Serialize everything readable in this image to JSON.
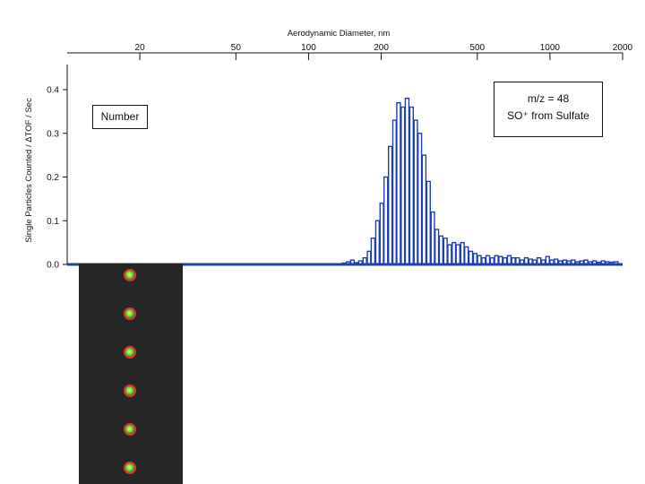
{
  "chart_data": {
    "type": "bar",
    "title": "Aerodynamic Diameter, nm",
    "ylabel": "Single Particles Counted / ΔTOF / Sec",
    "xscale": "log",
    "xlim": [
      10,
      2000
    ],
    "ylim": [
      0,
      0.43
    ],
    "x_ticks": [
      20,
      50,
      100,
      200,
      500,
      1000,
      2000
    ],
    "x_tick_labels": [
      "20",
      "50",
      "100",
      "200",
      "500",
      "1000",
      "2000"
    ],
    "y_ticks": [
      0.0,
      0.1,
      0.2,
      0.3,
      0.4
    ],
    "y_tick_labels": [
      "0.0",
      "0.1",
      "0.2",
      "0.3",
      "0.4"
    ],
    "bars_x_nm": [
      140,
      146,
      152,
      158,
      164,
      171,
      178,
      185,
      193,
      201,
      209,
      218,
      227,
      236,
      246,
      256,
      267,
      278,
      289,
      301,
      314,
      327,
      340,
      354,
      369,
      384,
      400,
      416,
      434,
      451,
      470,
      490,
      510,
      531,
      553,
      576,
      600,
      625,
      651,
      678,
      706,
      735,
      766,
      798,
      831,
      865,
      901,
      939,
      978,
      1018,
      1061,
      1105,
      1151,
      1199,
      1248,
      1300,
      1354,
      1410,
      1469,
      1530,
      1594,
      1660,
      1729,
      1801,
      1876
    ],
    "values": [
      0.003,
      0.006,
      0.01,
      0.004,
      0.008,
      0.015,
      0.03,
      0.06,
      0.1,
      0.14,
      0.2,
      0.27,
      0.33,
      0.37,
      0.36,
      0.38,
      0.36,
      0.33,
      0.3,
      0.25,
      0.19,
      0.12,
      0.08,
      0.065,
      0.06,
      0.045,
      0.05,
      0.045,
      0.05,
      0.04,
      0.03,
      0.025,
      0.02,
      0.015,
      0.02,
      0.015,
      0.02,
      0.018,
      0.015,
      0.02,
      0.015,
      0.015,
      0.01,
      0.015,
      0.012,
      0.01,
      0.015,
      0.01,
      0.018,
      0.01,
      0.012,
      0.008,
      0.01,
      0.008,
      0.01,
      0.006,
      0.008,
      0.01,
      0.006,
      0.008,
      0.005,
      0.008,
      0.006,
      0.005,
      0.006
    ],
    "series_color": "#1f3fb3",
    "annotations": {
      "number_label": "Number",
      "ion_line1": "m/z = 48",
      "ion_line2": "SO⁺ from Sulfate"
    }
  },
  "particle_image": {
    "background": "#262626",
    "count": 6
  }
}
